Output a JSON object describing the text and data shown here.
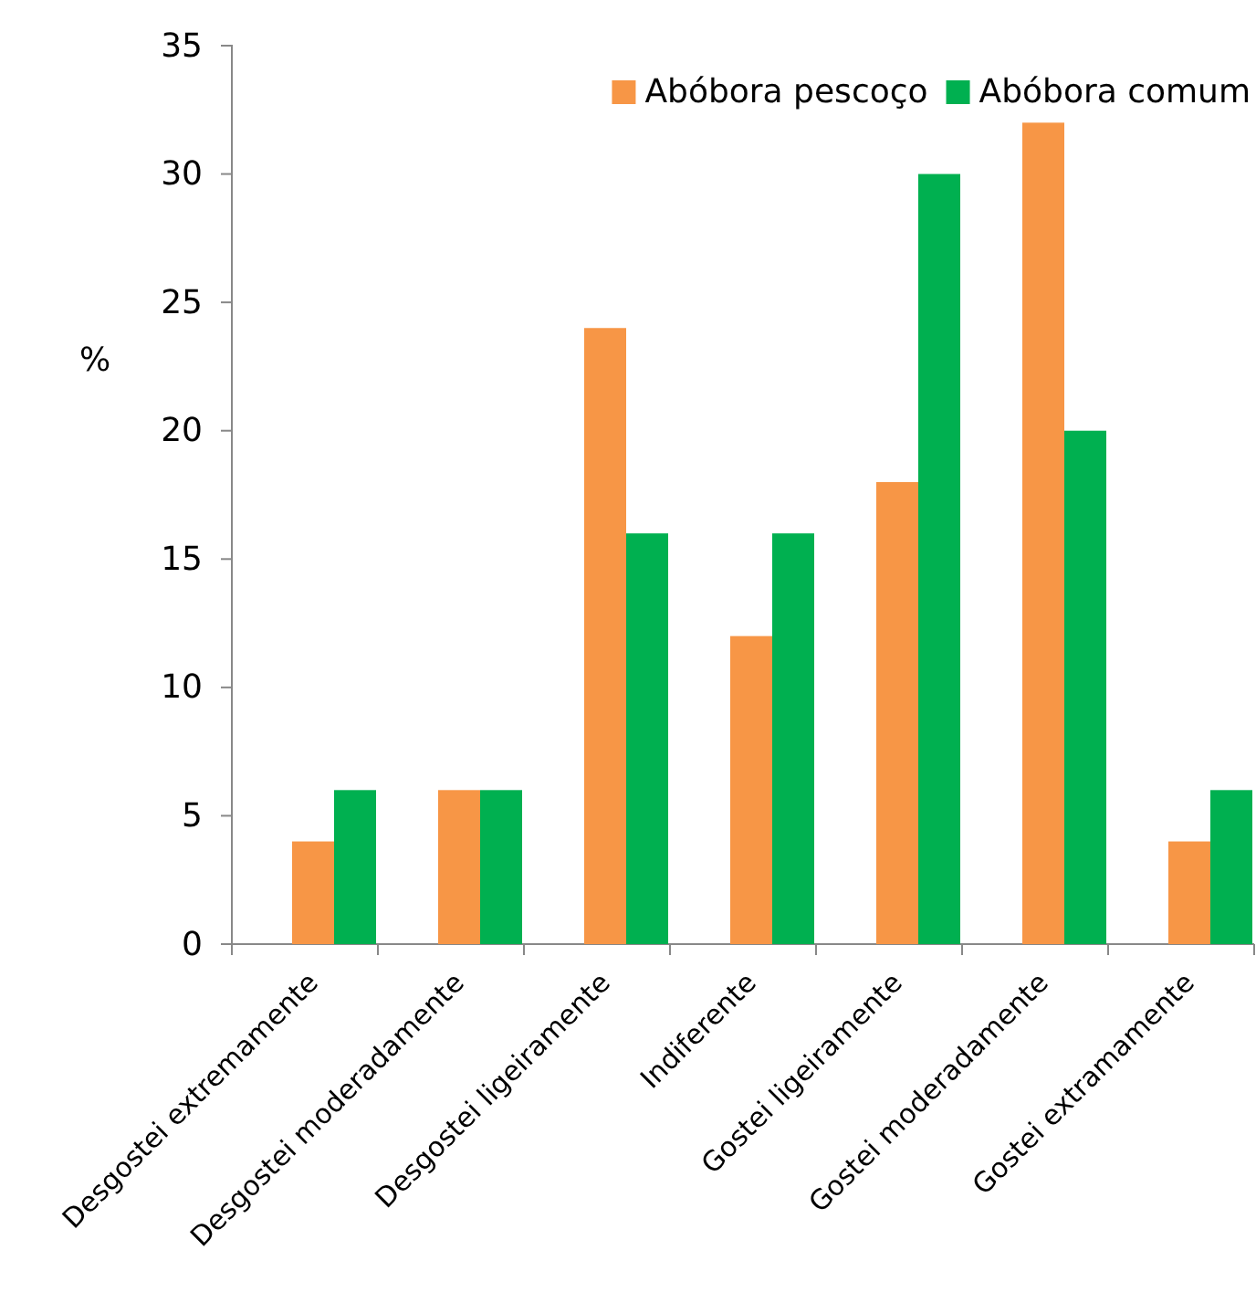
{
  "chart_data": {
    "type": "bar",
    "ylabel": "%",
    "categories": [
      "Desgostei extremamente",
      "Desgostei moderadamente",
      "Desgostei ligeiramente",
      "Indiferente",
      "Gostei ligeiramente",
      "Gostei moderadamente",
      "Gostei extramamente"
    ],
    "series": [
      {
        "name": "Abóbora pescoço",
        "color": "#f79646",
        "values": [
          4,
          6,
          24,
          12,
          18,
          32,
          4
        ]
      },
      {
        "name": "Abóbora comum",
        "color": "#00b050",
        "values": [
          6,
          6,
          16,
          16,
          30,
          20,
          6
        ]
      }
    ],
    "ylim": [
      0,
      35
    ],
    "yticks": [
      0,
      5,
      10,
      15,
      20,
      25,
      30,
      35
    ],
    "grid": false,
    "legend": "top right"
  }
}
